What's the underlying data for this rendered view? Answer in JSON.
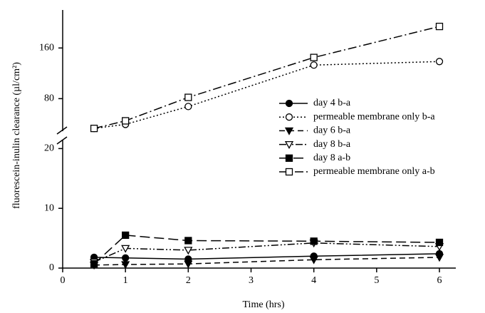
{
  "chart_data": {
    "type": "line",
    "xlabel": "Time (hrs)",
    "ylabel": "fluorescein-inulin clearance (µl/cm²)",
    "x": [
      0.5,
      1,
      2,
      4,
      6
    ],
    "xlim": [
      0,
      6.3
    ],
    "xticks": [
      0,
      1,
      2,
      3,
      4,
      5,
      6
    ],
    "ylim": [
      0,
      21
    ],
    "yticks": [
      0,
      10,
      20
    ],
    "y2lim": [
      32,
      220
    ],
    "y2ticks": [
      80,
      160
    ],
    "legend": "center-right",
    "series": [
      {
        "name": "day 4 b-a",
        "color": "#000000",
        "marker": "circle",
        "filled": true,
        "dash": "solid",
        "values": [
          1.8,
          1.7,
          1.5,
          2.0,
          2.4
        ]
      },
      {
        "name": "permeable membrane only b-a",
        "color": "#000000",
        "marker": "circle",
        "filled": false,
        "dash": "dotted",
        "axis": "y2",
        "values": [
          33,
          39.4,
          67.6,
          133,
          138.6
        ]
      },
      {
        "name": "day 6 b-a",
        "color": "#000000",
        "marker": "triangle",
        "filled": true,
        "dash": "dashed",
        "values": [
          0.5,
          0.6,
          0.7,
          1.4,
          1.8
        ]
      },
      {
        "name": "day 8 b-a",
        "color": "#000000",
        "marker": "triangle",
        "filled": false,
        "dash": "dashdotdot",
        "values": [
          1.0,
          3.3,
          3.0,
          4.2,
          3.6
        ]
      },
      {
        "name": "day 8 a-b",
        "color": "#000000",
        "marker": "square",
        "filled": true,
        "dash": "longdash",
        "values": [
          0.7,
          5.5,
          4.6,
          4.5,
          4.3
        ]
      },
      {
        "name": "permeable membrane only a-b",
        "color": "#000000",
        "marker": "square",
        "filled": false,
        "dash": "dashdot",
        "axis": "y2",
        "values": [
          33,
          45,
          82,
          145,
          194
        ]
      }
    ]
  }
}
